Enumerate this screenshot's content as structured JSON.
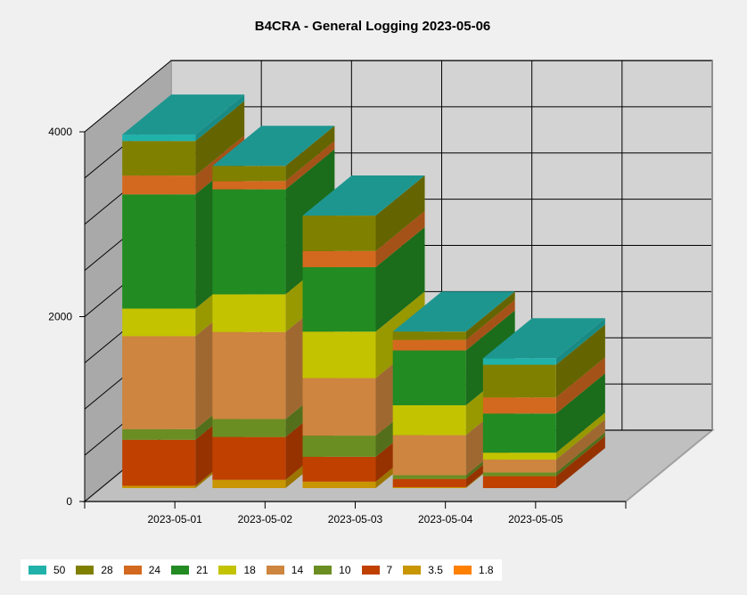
{
  "chart_data": {
    "type": "bar",
    "stacked": true,
    "three_d": true,
    "title": "B4CRA - General Logging 2023-05-06",
    "categories": [
      "2023-05-01",
      "2023-05-02",
      "2023-05-03",
      "2023-05-04",
      "2023-05-05"
    ],
    "y_ticks": [
      "0",
      "2000",
      "4000"
    ],
    "ylim": [
      0,
      4000
    ],
    "grid": true,
    "legend_position": "bottom",
    "series": [
      {
        "name": "1.8",
        "color": "#ff8000",
        "values": [
          0,
          0,
          0,
          0,
          0
        ]
      },
      {
        "name": "3.5",
        "color": "#c89600",
        "values": [
          25,
          90,
          70,
          10,
          0
        ]
      },
      {
        "name": "7",
        "color": "#c04000",
        "values": [
          500,
          465,
          270,
          90,
          130
        ]
      },
      {
        "name": "10",
        "color": "#6b8e23",
        "values": [
          115,
          195,
          230,
          40,
          40
        ]
      },
      {
        "name": "14",
        "color": "#cd853f",
        "values": [
          1010,
          945,
          625,
          435,
          140
        ]
      },
      {
        "name": "18",
        "color": "#c3c300",
        "values": [
          300,
          410,
          505,
          325,
          75
        ]
      },
      {
        "name": "21",
        "color": "#228b22",
        "values": [
          1240,
          1140,
          700,
          595,
          425
        ]
      },
      {
        "name": "24",
        "color": "#d2691e",
        "values": [
          205,
          90,
          175,
          115,
          175
        ]
      },
      {
        "name": "28",
        "color": "#808000",
        "values": [
          375,
          165,
          385,
          90,
          355
        ]
      },
      {
        "name": "50",
        "color": "#20b2aa",
        "values": [
          70,
          0,
          0,
          0,
          70
        ]
      }
    ]
  },
  "legend_order": [
    "50",
    "28",
    "24",
    "21",
    "18",
    "14",
    "10",
    "7",
    "3.5",
    "1.8"
  ]
}
